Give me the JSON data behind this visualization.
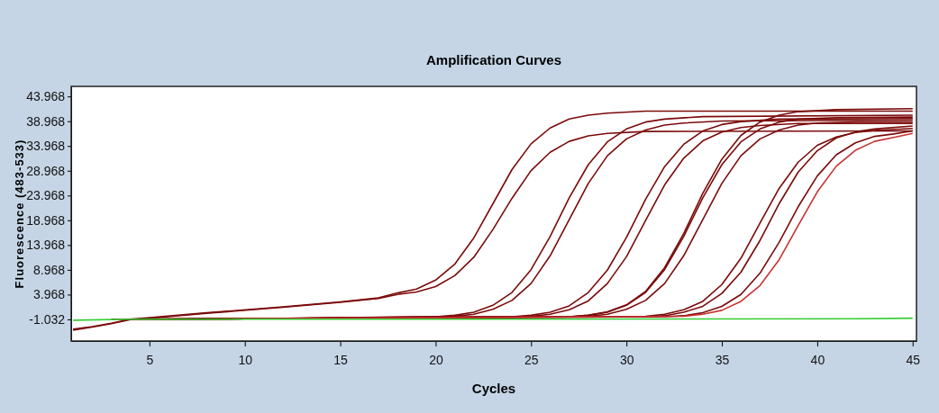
{
  "chart_data": {
    "type": "line",
    "title": "Amplification Curves",
    "xlabel": "Cycles",
    "ylabel": "Fluorescence (483-533)",
    "xlim": [
      0.9,
      45.2
    ],
    "ylim": [
      -5.4,
      46
    ],
    "xticks": [
      5,
      10,
      15,
      20,
      25,
      30,
      35,
      40,
      45
    ],
    "yticks": [
      -1.032,
      3.968,
      8.968,
      13.968,
      18.968,
      23.968,
      28.968,
      33.968,
      38.968,
      43.968
    ],
    "grid": false,
    "marker": "none",
    "line_style": "solid",
    "series": [
      {
        "color": "#7b0a0a",
        "x": [
          1,
          2,
          3,
          4,
          5,
          8,
          12,
          15,
          17,
          18,
          19,
          20,
          21,
          22,
          23,
          24,
          25,
          26,
          27,
          28,
          29,
          31,
          45
        ],
        "values": [
          -3,
          -2.5,
          -1.8,
          -1,
          -0.7,
          0.3,
          1.5,
          2.5,
          3.3,
          4.3,
          5.1,
          6.9,
          10.1,
          15.4,
          22.3,
          29.2,
          34.4,
          37.6,
          39.4,
          40.2,
          40.6,
          41,
          41
        ]
      },
      {
        "color": "#7b0a0a",
        "x": [
          1,
          2,
          3,
          4,
          5,
          8,
          12,
          15,
          17,
          18,
          19,
          20,
          21,
          22,
          23,
          24,
          25,
          26,
          27,
          28,
          29,
          31,
          45
        ],
        "values": [
          -3.2,
          -2.6,
          -1.9,
          -1.1,
          -0.8,
          0.2,
          1.4,
          2.4,
          3.2,
          4,
          4.5,
          5.6,
          7.8,
          11.5,
          17.1,
          23.4,
          29,
          32.7,
          34.9,
          36,
          36.5,
          36.9,
          37
        ]
      },
      {
        "color": "#7b0a0a",
        "x": [
          3,
          10,
          20,
          21,
          22,
          23,
          24,
          25,
          26,
          27,
          28,
          29,
          30,
          31,
          32,
          34,
          45
        ],
        "values": [
          -1,
          -0.9,
          -0.5,
          -0.2,
          0.4,
          1.8,
          4.4,
          9,
          15.7,
          23.5,
          30.2,
          34.8,
          37.4,
          38.8,
          39.4,
          39.9,
          40.2
        ]
      },
      {
        "color": "#7b0a0a",
        "x": [
          3.5,
          10,
          21,
          22,
          23,
          24,
          25,
          26,
          27,
          28,
          29,
          30,
          31,
          32,
          33,
          35,
          45
        ],
        "values": [
          -1,
          -0.9,
          -0.4,
          0,
          1,
          2.8,
          6.2,
          11.8,
          19.1,
          26.4,
          32,
          35.4,
          37.2,
          38.2,
          38.6,
          39,
          39.2
        ]
      },
      {
        "color": "#7b0a0a",
        "x": [
          4,
          10,
          24,
          25,
          26,
          27,
          28,
          29,
          30,
          31,
          32,
          33,
          34,
          35,
          36,
          38,
          45
        ],
        "values": [
          -1,
          -0.9,
          -0.5,
          -0.2,
          0.4,
          1.7,
          4.4,
          8.9,
          15.5,
          23.2,
          29.8,
          34.3,
          37,
          38.3,
          38.9,
          39.4,
          39.5
        ]
      },
      {
        "color": "#7b0a0a",
        "x": [
          4.5,
          10,
          25,
          26,
          27,
          28,
          29,
          30,
          31,
          32,
          33,
          34,
          35,
          36,
          37,
          39,
          45
        ],
        "values": [
          -1,
          -0.9,
          -0.4,
          0,
          0.9,
          2.7,
          6.2,
          11.6,
          18.9,
          26.1,
          31.5,
          35,
          36.8,
          37.7,
          38.1,
          38.5,
          38.5
        ]
      },
      {
        "color": "#7b0a0a",
        "x": [
          5,
          10,
          27,
          28,
          29,
          30,
          31,
          32,
          33,
          34,
          35,
          36,
          37,
          38,
          39,
          41,
          45
        ],
        "values": [
          -1,
          -0.9,
          -0.5,
          -0.2,
          0.5,
          1.9,
          4.6,
          9.4,
          16.3,
          24.4,
          31.3,
          36.1,
          38.8,
          40.2,
          40.9,
          41.3,
          41.5
        ]
      },
      {
        "color": "#7b0a0a",
        "x": [
          5.5,
          10,
          27,
          28,
          29,
          30,
          31,
          32,
          33,
          34,
          35,
          36,
          37,
          38,
          39,
          41,
          45
        ],
        "values": [
          -1,
          -0.9,
          -0.5,
          -0.2,
          0.4,
          1.8,
          4.4,
          9,
          15.7,
          23.5,
          30.2,
          34.8,
          37.4,
          38.8,
          39.4,
          39.7,
          39.8
        ]
      },
      {
        "color": "#7b0a0a",
        "x": [
          6,
          10,
          28,
          29,
          30,
          31,
          32,
          33,
          34,
          35,
          36,
          37,
          38,
          39,
          40,
          42,
          45
        ],
        "values": [
          -1,
          -0.9,
          -0.4,
          0,
          1,
          2.8,
          6.2,
          11.8,
          19.1,
          26.4,
          32,
          35.4,
          37.2,
          38.2,
          38.6,
          38.8,
          38.8
        ]
      },
      {
        "color": "#7b0a0a",
        "x": [
          6.5,
          10,
          31,
          32,
          33,
          34,
          35,
          36,
          37,
          38,
          39,
          40,
          41,
          42,
          43,
          45
        ],
        "values": [
          -1,
          -0.9,
          -0.4,
          0,
          0.9,
          2.6,
          6,
          11.3,
          18.4,
          25.4,
          30.7,
          34.1,
          35.8,
          36.7,
          37.1,
          37.5
        ]
      },
      {
        "color": "#7b0a0a",
        "x": [
          7,
          10,
          31,
          32,
          33,
          34,
          35,
          36,
          37,
          38,
          39,
          40,
          41,
          42,
          43,
          45
        ],
        "values": [
          -1,
          -0.9,
          -0.5,
          -0.3,
          0.4,
          1.6,
          4.2,
          8.5,
          14.9,
          22.3,
          28.7,
          33,
          35.6,
          36.8,
          37.4,
          38
        ]
      },
      {
        "color": "#7b0a0a",
        "x": [
          7.5,
          10,
          32,
          33,
          34,
          35,
          36,
          37,
          38,
          39,
          40,
          41,
          42,
          43,
          44,
          45
        ],
        "values": [
          -1,
          -0.9,
          -0.5,
          -0.3,
          0.3,
          1.6,
          4,
          8.3,
          14.5,
          21.7,
          27.9,
          32.2,
          34.6,
          35.9,
          36.4,
          37
        ]
      },
      {
        "color": "#c83232",
        "x": [
          8,
          10,
          33,
          34,
          35,
          36,
          37,
          38,
          39,
          40,
          41,
          42,
          43,
          44,
          45
        ],
        "values": [
          -1,
          -0.9,
          -0.4,
          0,
          0.8,
          2.6,
          5.8,
          11,
          17.9,
          24.7,
          29.9,
          33.1,
          34.9,
          35.7,
          36.5
        ]
      },
      {
        "color": "#33cc33",
        "x": [
          1,
          4,
          20,
          42,
          45
        ],
        "values": [
          -1.2,
          -1,
          -1,
          -0.9,
          -0.8
        ]
      }
    ]
  }
}
